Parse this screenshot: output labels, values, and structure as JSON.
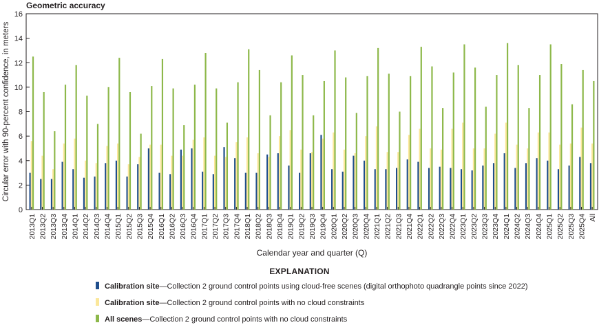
{
  "chart_data": {
    "type": "bar",
    "title": "Geometric accuracy",
    "xlabel": "Calendar year and quarter (Q)",
    "ylabel": "Circular error with 90-percent confidence, in meters",
    "ylim": [
      0,
      16
    ],
    "yticks": [
      0,
      2,
      4,
      6,
      8,
      10,
      12,
      14,
      16
    ],
    "grid": false,
    "categories": [
      "2013Q1",
      "2013Q2",
      "2013Q3",
      "2013Q4",
      "2014Q1",
      "2014Q2",
      "2014Q3",
      "2014Q4",
      "2015Q1",
      "2015Q2",
      "2015Q3",
      "2015Q4",
      "2016Q1",
      "2016Q2",
      "2016Q3",
      "2016Q4",
      "2017Q1",
      "2017Q2",
      "2017Q3",
      "2017Q4",
      "2018Q1",
      "2018Q2",
      "2018Q3",
      "2018Q4",
      "2019Q1",
      "2019Q2",
      "2019Q3",
      "2019Q4",
      "2020Q1",
      "2020Q2",
      "2020Q3",
      "2020Q4",
      "2021Q1",
      "2021Q2",
      "2021Q3",
      "2021Q4",
      "2022Q1",
      "2022Q2",
      "2022Q3",
      "2022Q4",
      "2023Q1",
      "2023Q2",
      "2023Q3",
      "2023Q4",
      "2024Q1",
      "2024Q2",
      "2024Q3",
      "2024Q4",
      "2025Q1",
      "2025Q2",
      "2025Q3",
      "2025Q4",
      "All"
    ],
    "series": [
      {
        "name": "Calibration site—Collection 2 ground control points using cloud-free scenes (digital orthophoto quadrangle points since 2022)",
        "color": "#1f4e8c",
        "values": [
          3.0,
          2.5,
          2.5,
          3.9,
          3.3,
          2.6,
          2.7,
          3.8,
          4.0,
          2.7,
          3.7,
          5.0,
          3.0,
          2.9,
          4.9,
          5.0,
          3.1,
          2.9,
          5.1,
          4.2,
          3.0,
          3.0,
          4.5,
          4.6,
          3.6,
          3.0,
          4.6,
          6.1,
          3.3,
          3.1,
          4.4,
          4.0,
          3.3,
          3.3,
          3.4,
          4.1,
          3.9,
          3.4,
          3.5,
          3.4,
          3.3,
          3.2,
          3.6,
          3.8,
          4.6,
          3.4,
          3.8,
          4.2,
          4.0,
          3.3,
          3.6,
          4.3,
          3.8
        ]
      },
      {
        "name": "Calibration site—Collection 2 ground control points with no cloud constraints",
        "color": "#fbe79a",
        "values": [
          5.6,
          4.4,
          3.3,
          5.4,
          5.8,
          4.0,
          3.8,
          5.2,
          5.4,
          3.7,
          4.3,
          5.3,
          5.3,
          4.4,
          4.4,
          5.7,
          5.9,
          4.4,
          4.3,
          5.5,
          5.9,
          4.6,
          4.3,
          6.0,
          6.5,
          4.9,
          4.7,
          5.8,
          6.3,
          4.9,
          4.6,
          6.0,
          6.8,
          4.7,
          4.7,
          6.1,
          6.6,
          5.0,
          4.9,
          6.6,
          7.1,
          5.0,
          5.0,
          6.2,
          7.1,
          5.3,
          5.0,
          6.3,
          6.3,
          5.3,
          5.4,
          6.7,
          5.4
        ]
      },
      {
        "name": "All scenes—Collection 2 ground control points with no cloud constraints",
        "color": "#8db84a",
        "values": [
          12.5,
          9.6,
          6.4,
          10.2,
          11.8,
          9.3,
          7.0,
          10.0,
          12.4,
          9.6,
          6.2,
          10.1,
          12.3,
          9.9,
          6.9,
          10.2,
          12.8,
          9.9,
          7.1,
          10.4,
          13.1,
          11.4,
          7.7,
          10.4,
          12.6,
          11.0,
          7.7,
          10.5,
          13.0,
          10.8,
          7.9,
          10.9,
          13.2,
          11.1,
          8.0,
          10.9,
          13.3,
          11.7,
          8.3,
          11.2,
          13.5,
          11.6,
          8.4,
          11.0,
          13.6,
          11.8,
          8.3,
          11.0,
          13.5,
          11.9,
          8.6,
          11.4,
          10.5
        ]
      }
    ]
  },
  "legend": {
    "heading": "EXPLANATION",
    "items": [
      {
        "label_bold": "Calibration site",
        "label_rest": "—Collection 2 ground control points using cloud-free scenes (digital orthophoto quadrangle points since 2022)",
        "color": "#1f4e8c"
      },
      {
        "label_bold": "Calibration site",
        "label_rest": "—Collection 2 ground control points with no cloud constraints",
        "color": "#fbe79a"
      },
      {
        "label_bold": "All scenes",
        "label_rest": "—Collection 2 ground control points with no cloud constraints",
        "color": "#8db84a"
      }
    ]
  }
}
